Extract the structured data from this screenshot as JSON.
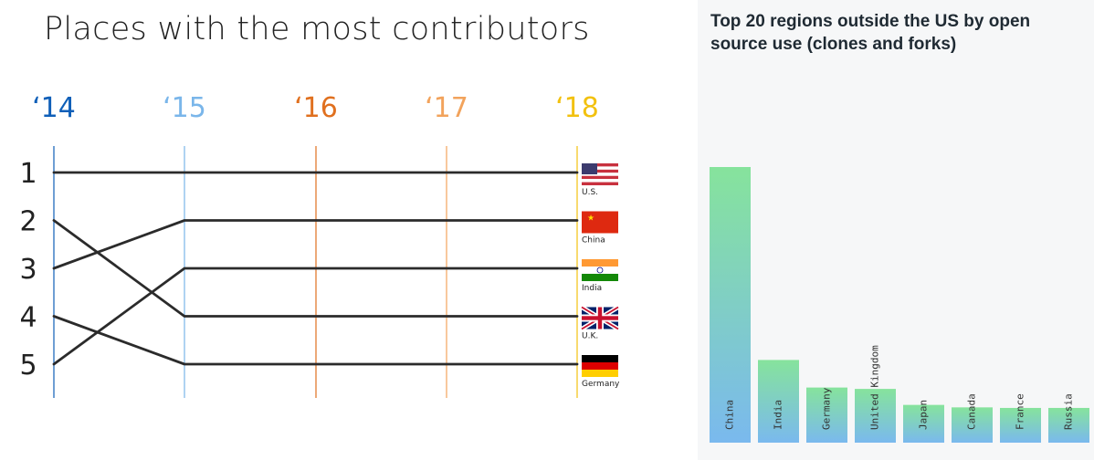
{
  "bump_chart": {
    "title": "Places with the most contributors",
    "years": [
      {
        "label": "‘14",
        "color": "#0f5fb8"
      },
      {
        "label": "‘15",
        "color": "#7ab6ea"
      },
      {
        "label": "‘16",
        "color": "#e0701f"
      },
      {
        "label": "‘17",
        "color": "#f2a35c"
      },
      {
        "label": "‘18",
        "color": "#f2c10f"
      }
    ],
    "ranks": [
      "1",
      "2",
      "3",
      "4",
      "5"
    ],
    "countries": [
      {
        "name": "U.S.",
        "flag": "us-flag",
        "ranks": [
          1,
          1,
          1,
          1,
          1
        ]
      },
      {
        "name": "China",
        "flag": "china-flag",
        "ranks": [
          3,
          2,
          2,
          2,
          2
        ]
      },
      {
        "name": "India",
        "flag": "india-flag",
        "ranks": [
          5,
          3,
          3,
          3,
          3
        ]
      },
      {
        "name": "U.K.",
        "flag": "uk-flag",
        "ranks": [
          2,
          4,
          4,
          4,
          4
        ]
      },
      {
        "name": "Germany",
        "flag": "germany-flag",
        "ranks": [
          4,
          5,
          5,
          5,
          5
        ]
      }
    ]
  },
  "chart_data": [
    {
      "type": "line",
      "title": "Places with the most contributors",
      "x": [
        "‘14",
        "‘15",
        "‘16",
        "‘17",
        "‘18"
      ],
      "y_inverted": true,
      "yticks": [
        "1",
        "2",
        "3",
        "4",
        "5"
      ],
      "series": [
        {
          "name": "U.S.",
          "values": [
            1,
            1,
            1,
            1,
            1
          ]
        },
        {
          "name": "China",
          "values": [
            3,
            2,
            2,
            2,
            2
          ]
        },
        {
          "name": "India",
          "values": [
            5,
            3,
            3,
            3,
            3
          ]
        },
        {
          "name": "U.K.",
          "values": [
            2,
            4,
            4,
            4,
            4
          ]
        },
        {
          "name": "Germany",
          "values": [
            4,
            5,
            5,
            5,
            5
          ]
        }
      ]
    },
    {
      "type": "bar",
      "title": "Top 20 regions outside the US by open source use (clones and forks)",
      "categories": [
        "China",
        "India",
        "Germany",
        "United Kingdom",
        "Japan",
        "Canada",
        "France",
        "Russia"
      ],
      "values": [
        100,
        30,
        20,
        19.5,
        13.7,
        12.8,
        12.6,
        12.6
      ],
      "gradient": {
        "top": "#86e39c",
        "bottom": "#7ab9ee"
      },
      "ylim": [
        0,
        100
      ]
    }
  ]
}
